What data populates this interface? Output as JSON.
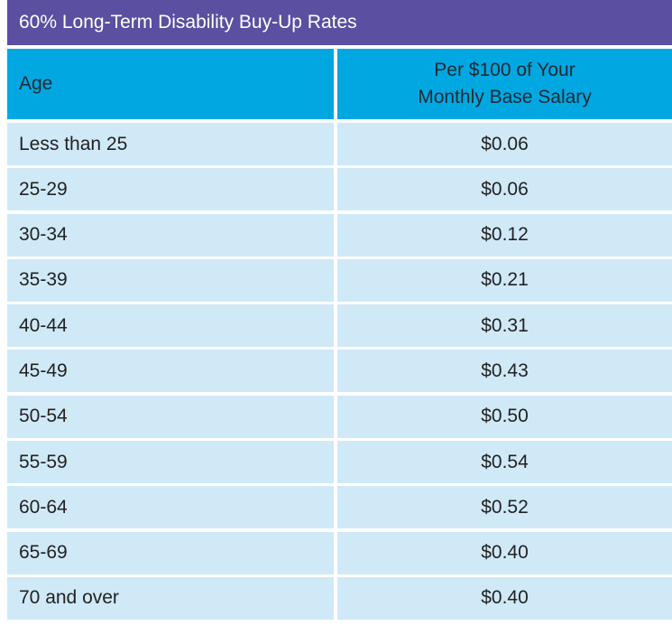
{
  "table": {
    "title": "60% Long-Term Disability Buy-Up Rates",
    "headers": {
      "age": "Age",
      "rate_line1": "Per $100 of Your",
      "rate_line2": "Monthly Base Salary"
    },
    "rows": [
      {
        "age": "Less than 25",
        "rate": "$0.06"
      },
      {
        "age": "25-29",
        "rate": "$0.06"
      },
      {
        "age": "30-34",
        "rate": "$0.12"
      },
      {
        "age": "35-39",
        "rate": "$0.21"
      },
      {
        "age": "40-44",
        "rate": "$0.31"
      },
      {
        "age": "45-49",
        "rate": "$0.43"
      },
      {
        "age": "50-54",
        "rate": "$0.50"
      },
      {
        "age": "55-59",
        "rate": "$0.54"
      },
      {
        "age": "60-64",
        "rate": "$0.52"
      },
      {
        "age": "65-69",
        "rate": "$0.40"
      },
      {
        "age": "70 and over",
        "rate": "$0.40"
      }
    ]
  },
  "colors": {
    "title_bg": "#5a4fa0",
    "header_bg": "#00a7e1",
    "row_bg": "#d0e9f7"
  }
}
